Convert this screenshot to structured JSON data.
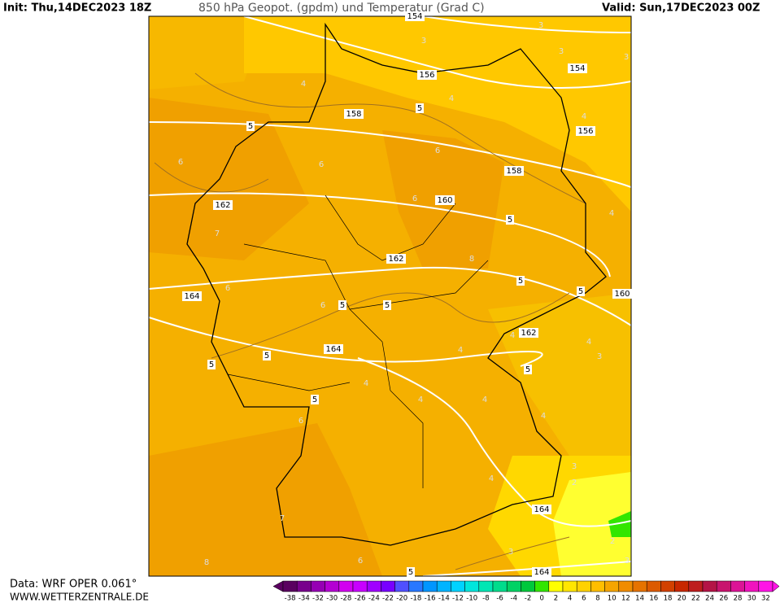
{
  "header": {
    "init": "Init: Thu,14DEC2023 18Z",
    "title": "850 hPa Geopot. (gpdm) und Temperatur (Grad C)",
    "valid": "Valid: Sun,17DEC2023 00Z"
  },
  "footer": {
    "source": "Data: WRF OPER 0.061°",
    "site": "WWW.WETTERZENTRALE.DE"
  },
  "map": {
    "geopotential_labels": [
      154,
      156,
      154,
      158,
      156,
      158,
      160,
      162,
      162,
      164,
      160,
      162,
      164,
      164,
      164
    ],
    "temperature_labels_black": [
      5,
      5,
      5,
      5,
      5,
      5,
      5,
      5,
      5,
      5,
      5,
      5
    ],
    "temperature_labels_gray": [
      3,
      3,
      3,
      3,
      4,
      4,
      4,
      6,
      6,
      6,
      6,
      4,
      7,
      8,
      6,
      6,
      4,
      4,
      3,
      4,
      4,
      4,
      4,
      4,
      6,
      3,
      2,
      4,
      7,
      3,
      8,
      6,
      3,
      2
    ]
  },
  "colorbar": {
    "labels": [
      -38,
      -34,
      -32,
      -30,
      -28,
      -26,
      -24,
      -22,
      -20,
      -18,
      -16,
      -14,
      -12,
      -10,
      -8,
      -6,
      -4,
      -2,
      0,
      2,
      4,
      6,
      8,
      10,
      12,
      14,
      16,
      18,
      20,
      22,
      24,
      26,
      28,
      30,
      32
    ],
    "colors": [
      "#5a0060",
      "#78008c",
      "#9600b4",
      "#b400d2",
      "#d200f0",
      "#c800ff",
      "#a000ff",
      "#7800ff",
      "#5050ff",
      "#2878ff",
      "#0096ff",
      "#00b4ff",
      "#00d2ff",
      "#00e6dc",
      "#00e6b4",
      "#00dc8c",
      "#00d264",
      "#00c83c",
      "#32e600",
      "#ffff00",
      "#ffe600",
      "#ffd200",
      "#ffbe00",
      "#f5a500",
      "#f08c00",
      "#e67300",
      "#dc5a00",
      "#d24100",
      "#c82800",
      "#be1e1e",
      "#b41446",
      "#c8146e",
      "#dc1496",
      "#f014be",
      "#ff14e6"
    ]
  }
}
